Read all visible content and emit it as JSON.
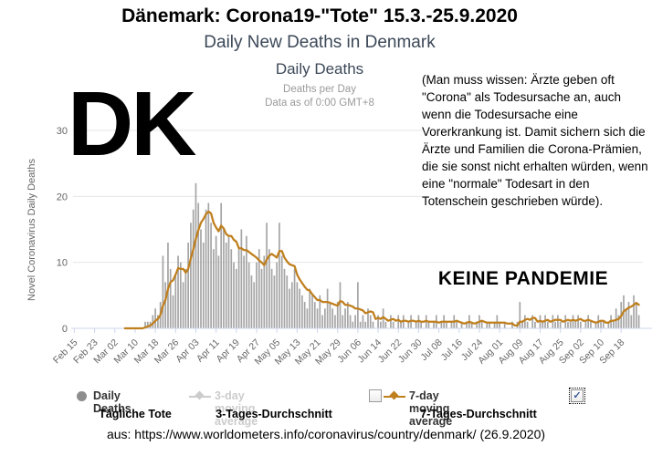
{
  "header": {
    "title": "Dänemark: Corona19-\"Tote\" 15.3.-25.9.2020",
    "subtitle": "Daily New Deaths in Denmark"
  },
  "overlays": {
    "country_code": "DK",
    "no_pandemic": "KEINE PANDEMIE",
    "annotation": "(Man muss wissen: Ärzte geben oft \"Corona\" als Todesursache an, auch wenn die Todesursache eine Vorerkrankung ist. Damit sichern sich die Ärzte und Familien die Corona-Prämien, die sie sonst nicht erhalten würden, wenn eine \"normale\" Todesart in den Totenschein geschrieben würde)."
  },
  "chart_data": {
    "type": "bar",
    "title": "Daily Deaths",
    "subtitle_line1": "Deaths per Day",
    "subtitle_line2": "Data as of 0:00 GMT+8",
    "ylabel": "Novel Coronavirus Daily Deaths",
    "xlabel": "",
    "ylim": [
      0,
      33
    ],
    "yticks": [
      0,
      10,
      20,
      30
    ],
    "grid": "horizontal",
    "legend_position": "bottom",
    "x_start_date": "2020-02-15",
    "x_end_date": "2020-09-25",
    "x_tick_interval_days": 8,
    "x_tick_labels": [
      "Feb 15",
      "Feb 23",
      "Mar 02",
      "Mar 10",
      "Mar 18",
      "Mar 26",
      "Apr 03",
      "Apr 11",
      "Apr 19",
      "Apr 27",
      "May 05",
      "May 13",
      "May 21",
      "May 29",
      "Jun 06",
      "Jun 14",
      "Jun 22",
      "Jun 30",
      "Jul 08",
      "Jul 16",
      "Jul 24",
      "Aug 01",
      "Aug 09",
      "Aug 17",
      "Aug 25",
      "Sep 02",
      "Sep 10",
      "Sep 18"
    ],
    "colors": {
      "bar": "#a5a5a5",
      "avg7_line": "#c07f1d",
      "hidden_series": "#cccccc",
      "gridline": "#e6e6e6",
      "axis_line": "#ccd6eb",
      "axis_text": "#666666"
    },
    "series": [
      {
        "name": "Daily Deaths",
        "type": "bar",
        "color": "#a5a5a5",
        "values": [
          0,
          0,
          0,
          0,
          0,
          0,
          0,
          0,
          0,
          0,
          0,
          0,
          0,
          0,
          0,
          0,
          0,
          0,
          0,
          0,
          0,
          0,
          0,
          0,
          0,
          0,
          0,
          0,
          1,
          1,
          1,
          2,
          3,
          2,
          4,
          11,
          7,
          13,
          9,
          5,
          8,
          11,
          10,
          7,
          9,
          13,
          16,
          18,
          22,
          19,
          15,
          13,
          18,
          19,
          16,
          12,
          14,
          11,
          19,
          15,
          13,
          14,
          12,
          10,
          9,
          12,
          15,
          11,
          14,
          10,
          8,
          7,
          10,
          12,
          9,
          11,
          16,
          12,
          9,
          8,
          10,
          16,
          11,
          9,
          8,
          6,
          7,
          9,
          7,
          6,
          5,
          4,
          3,
          6,
          5,
          4,
          3,
          5,
          2,
          3,
          6,
          4,
          3,
          2,
          4,
          7,
          2,
          3,
          4,
          2,
          1,
          2,
          7,
          1,
          2,
          1,
          3,
          2,
          1,
          0,
          2,
          1,
          3,
          1,
          0,
          2,
          1,
          0,
          2,
          1,
          2,
          0,
          1,
          2,
          0,
          1,
          2,
          1,
          0,
          2,
          1,
          0,
          1,
          2,
          0,
          1,
          2,
          1,
          0,
          1,
          2,
          1,
          0,
          1,
          0,
          1,
          2,
          1,
          0,
          1,
          2,
          1,
          0,
          1,
          1,
          0,
          1,
          2,
          1,
          0,
          1,
          0,
          0,
          1,
          0,
          1,
          4,
          1,
          2,
          1,
          0,
          2,
          1,
          0,
          2,
          1,
          2,
          1,
          0,
          2,
          1,
          2,
          1,
          0,
          2,
          1,
          1,
          2,
          1,
          2,
          1,
          0,
          1,
          2,
          1,
          0,
          1,
          2,
          1,
          1,
          0,
          1,
          2,
          1,
          3,
          2,
          4,
          5,
          3,
          4,
          2,
          5,
          4,
          2
        ]
      },
      {
        "name": "3-day moving average",
        "type": "line",
        "color": "#cccccc",
        "visible": false
      },
      {
        "name": "7-day moving average",
        "type": "line",
        "color": "#c07f1d",
        "derived_from": "7-day trailing mean of Daily Deaths"
      }
    ]
  },
  "legend": {
    "daily": "Daily Deaths",
    "avg3": "3-day moving average",
    "avg7": "7-day moving average",
    "daily_de": "Tägliche Tote",
    "avg3_de": "3-Tages-Durchschnitt",
    "avg7_de": "7-Tages-Durchschnitt",
    "avg3_checkbox_checked": false,
    "avg7_checkbox_checked": true,
    "check_glyph": "✓"
  },
  "footer": {
    "source": "aus: https://www.worldometers.info/coronavirus/country/denmark/ (26.9.2020)"
  }
}
